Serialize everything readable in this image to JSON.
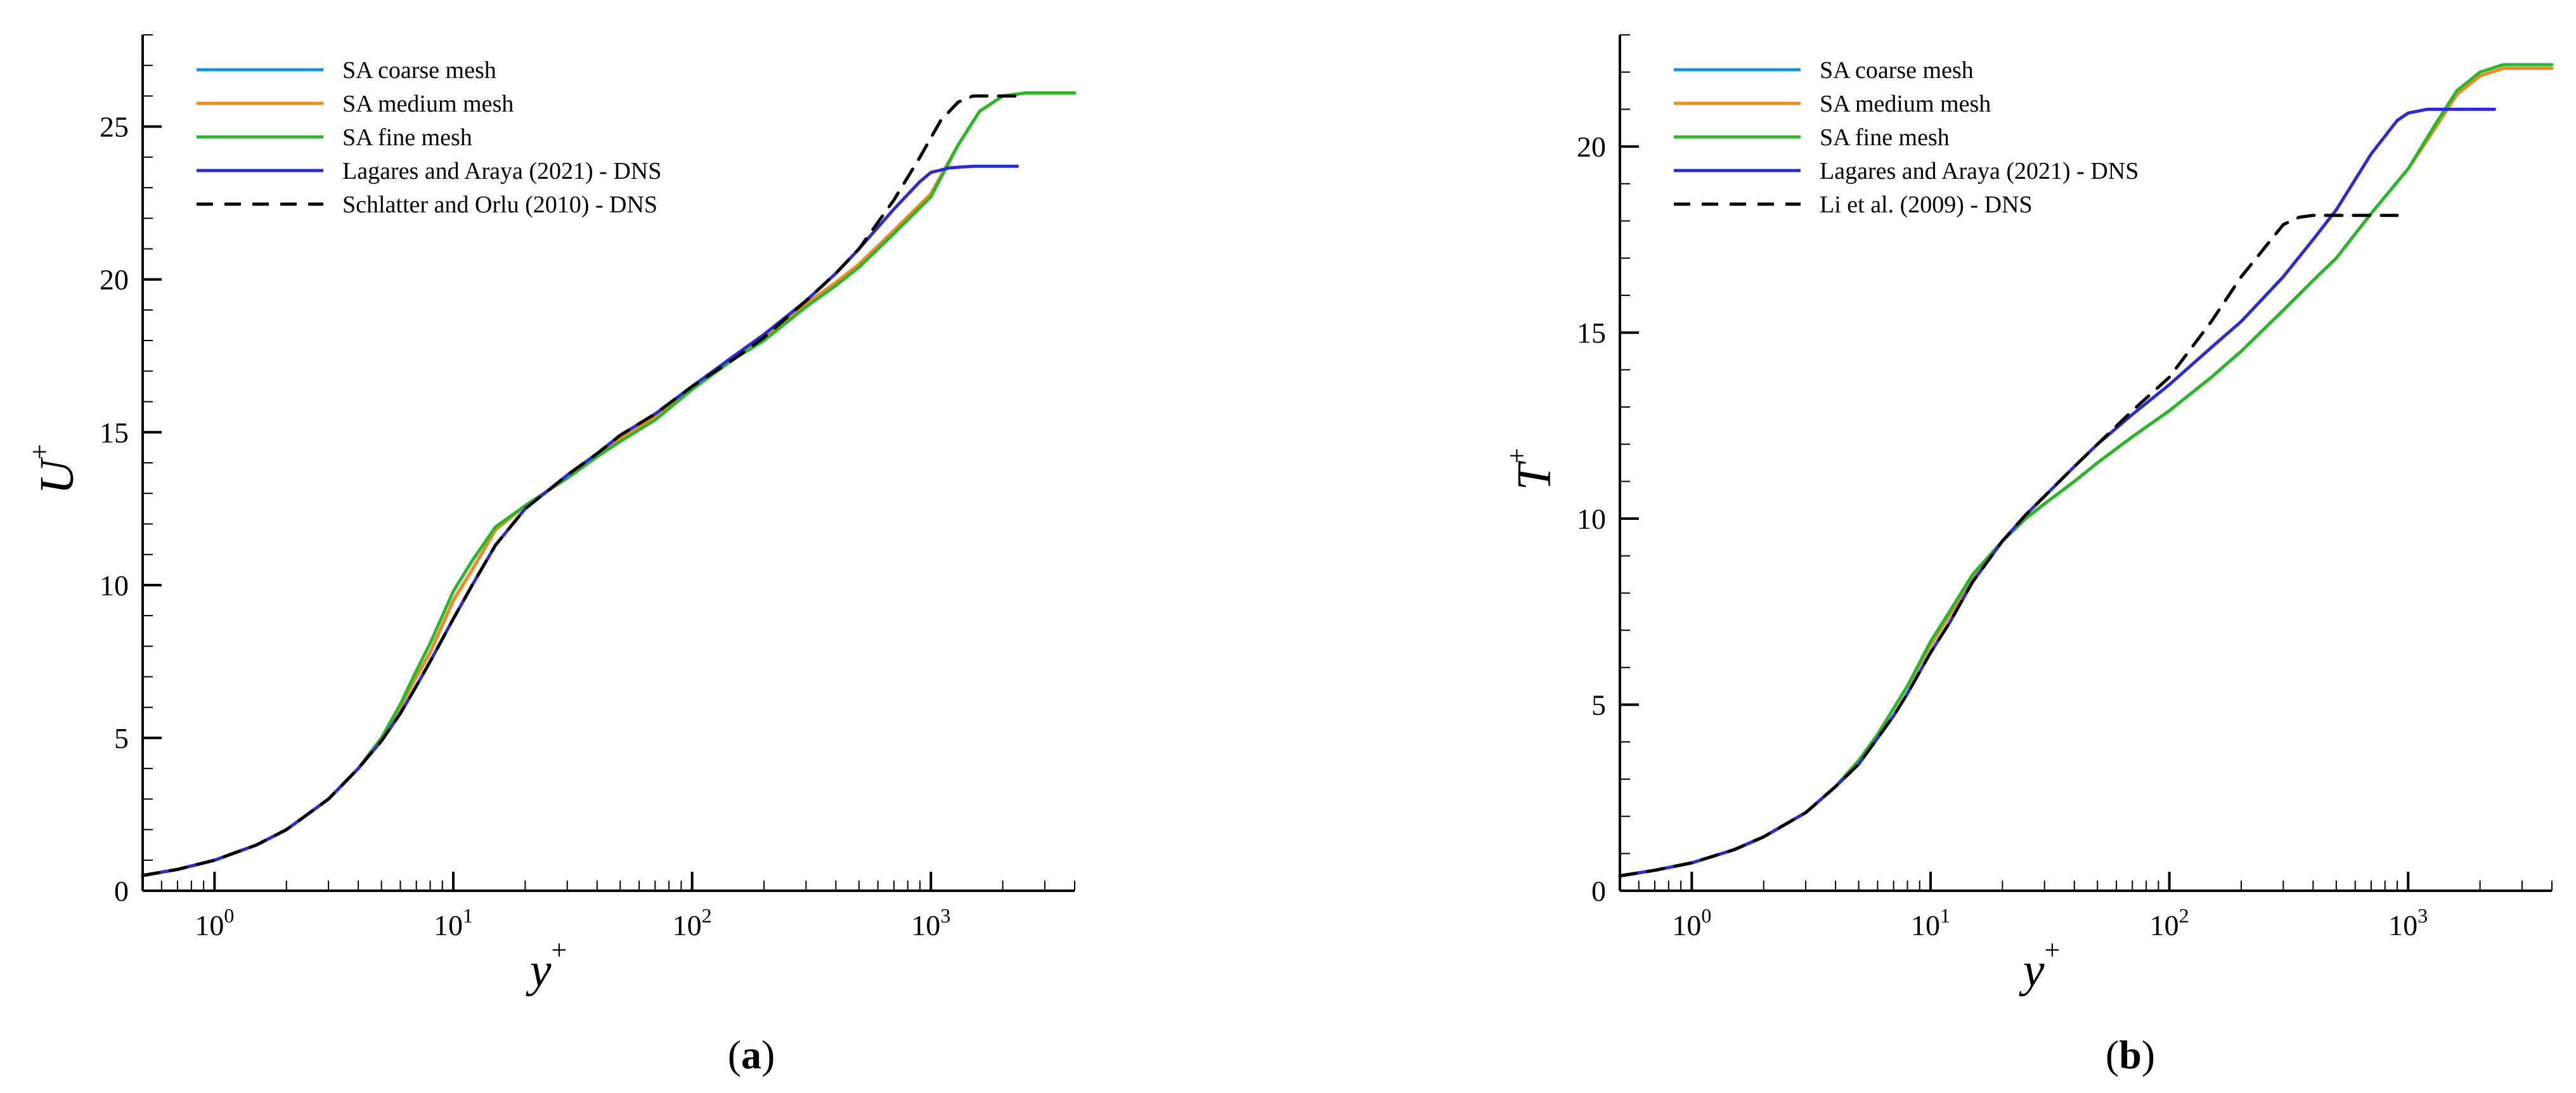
{
  "figure": {
    "panels": [
      "a",
      "b"
    ]
  },
  "chart_data": [
    {
      "type": "line",
      "panel_label": "(a)",
      "panel_letter": "a",
      "xlabel": "y",
      "xlabel_sup": "+",
      "ylabel": "U",
      "ylabel_sup": "+",
      "xscale": "log",
      "xlim": [
        0.5,
        4000
      ],
      "ylim": [
        0,
        28
      ],
      "yticks": [
        0,
        5,
        10,
        15,
        20,
        25
      ],
      "ytick_labels": [
        "0",
        "5",
        "10",
        "15",
        "20",
        "25"
      ],
      "xticks": [
        1,
        10,
        100,
        1000
      ],
      "xtick_base": "10",
      "xtick_exps": [
        "0",
        "1",
        "2",
        "3"
      ],
      "legend_position": "top-left",
      "grid": false,
      "series": [
        {
          "name": "SA coarse mesh",
          "color": "#1a8fd8",
          "dash": "solid",
          "x": [
            0.5,
            0.7,
            1,
            1.5,
            2,
            3,
            4,
            5,
            6,
            7,
            8,
            10,
            12,
            15,
            20,
            25,
            30,
            40,
            50,
            70,
            100,
            150,
            200,
            300,
            400,
            500,
            700,
            1000,
            1300,
            1600,
            2000,
            2500,
            3000,
            4000
          ],
          "y": [
            0.5,
            0.7,
            1.0,
            1.5,
            2.0,
            3.0,
            4.0,
            5.0,
            6.0,
            7.0,
            7.8,
            9.5,
            10.5,
            11.8,
            12.6,
            13.1,
            13.5,
            14.2,
            14.8,
            15.5,
            16.5,
            17.5,
            18.1,
            19.2,
            19.9,
            20.5,
            21.6,
            22.8,
            24.4,
            25.5,
            26.0,
            26.1,
            26.1,
            26.1
          ]
        },
        {
          "name": "SA medium mesh",
          "color": "#f28a1e",
          "dash": "solid",
          "x": [
            0.5,
            0.7,
            1,
            1.5,
            2,
            3,
            4,
            5,
            6,
            7,
            8,
            10,
            12,
            15,
            20,
            25,
            30,
            40,
            50,
            70,
            100,
            150,
            200,
            300,
            400,
            500,
            700,
            1000,
            1300,
            1600,
            2000,
            2500,
            3000,
            4000
          ],
          "y": [
            0.5,
            0.7,
            1.0,
            1.5,
            2.0,
            3.0,
            4.0,
            5.0,
            6.0,
            7.0,
            7.8,
            9.5,
            10.5,
            11.8,
            12.6,
            13.1,
            13.5,
            14.2,
            14.8,
            15.5,
            16.5,
            17.5,
            18.1,
            19.2,
            19.9,
            20.5,
            21.6,
            22.8,
            24.4,
            25.5,
            26.0,
            26.1,
            26.1,
            26.1
          ]
        },
        {
          "name": "SA fine mesh",
          "color": "#2ab82a",
          "dash": "solid",
          "x": [
            0.5,
            0.7,
            1,
            1.5,
            2,
            3,
            4,
            5,
            6,
            7,
            8,
            10,
            12,
            15,
            20,
            25,
            30,
            40,
            50,
            70,
            100,
            150,
            200,
            300,
            400,
            500,
            700,
            1000,
            1300,
            1600,
            2000,
            2500,
            3000,
            4000
          ],
          "y": [
            0.5,
            0.7,
            1.0,
            1.5,
            2.0,
            3.0,
            4.0,
            5.0,
            6.1,
            7.2,
            8.1,
            9.8,
            10.8,
            11.9,
            12.6,
            13.1,
            13.5,
            14.2,
            14.7,
            15.4,
            16.4,
            17.4,
            18.0,
            19.1,
            19.8,
            20.4,
            21.5,
            22.7,
            24.4,
            25.5,
            26.0,
            26.1,
            26.1,
            26.1
          ]
        },
        {
          "name": "Lagares and Araya (2021) - DNS",
          "color": "#2b2bd6",
          "dash": "solid",
          "x": [
            0.5,
            0.7,
            1,
            1.5,
            2,
            3,
            4,
            5,
            6,
            7,
            8,
            10,
            12,
            15,
            20,
            25,
            30,
            40,
            50,
            70,
            100,
            150,
            200,
            300,
            400,
            500,
            700,
            900,
            1000,
            1200,
            1500,
            2000,
            2300
          ],
          "y": [
            0.5,
            0.7,
            1.0,
            1.5,
            2.0,
            3.0,
            4.0,
            4.9,
            5.8,
            6.7,
            7.5,
            8.9,
            10.0,
            11.3,
            12.5,
            13.1,
            13.6,
            14.3,
            14.9,
            15.6,
            16.5,
            17.5,
            18.2,
            19.3,
            20.2,
            21.0,
            22.3,
            23.2,
            23.5,
            23.65,
            23.7,
            23.7,
            23.7
          ]
        },
        {
          "name": "Schlatter and Orlu (2010) - DNS",
          "color": "#000000",
          "dash": "dashed",
          "x": [
            0.5,
            0.7,
            1,
            1.5,
            2,
            3,
            4,
            5,
            6,
            7,
            8,
            10,
            12,
            15,
            20,
            25,
            30,
            40,
            50,
            70,
            100,
            150,
            200,
            300,
            400,
            500,
            700,
            900,
            1100,
            1300,
            1500,
            2000,
            2500
          ],
          "y": [
            0.5,
            0.7,
            1.0,
            1.5,
            2.0,
            3.0,
            4.0,
            4.9,
            5.8,
            6.7,
            7.5,
            8.9,
            10.0,
            11.3,
            12.5,
            13.1,
            13.6,
            14.3,
            14.9,
            15.6,
            16.5,
            17.4,
            18.1,
            19.3,
            20.2,
            21.0,
            22.6,
            24.0,
            25.2,
            25.8,
            26.0,
            26.0,
            26.0
          ]
        }
      ]
    },
    {
      "type": "line",
      "panel_label": "(b)",
      "panel_letter": "b",
      "xlabel": "y",
      "xlabel_sup": "+",
      "ylabel": "T",
      "ylabel_sup": "+",
      "xscale": "log",
      "xlim": [
        0.5,
        4000
      ],
      "ylim": [
        0,
        23
      ],
      "yticks": [
        0,
        5,
        10,
        15,
        20
      ],
      "ytick_labels": [
        "0",
        "5",
        "10",
        "15",
        "20"
      ],
      "xticks": [
        1,
        10,
        100,
        1000
      ],
      "xtick_base": "10",
      "xtick_exps": [
        "0",
        "1",
        "2",
        "3"
      ],
      "legend_position": "top-left",
      "grid": false,
      "series": [
        {
          "name": "SA coarse mesh",
          "color": "#1a8fd8",
          "dash": "solid",
          "x": [
            0.5,
            0.7,
            1,
            1.5,
            2,
            3,
            4,
            5,
            6,
            7,
            8,
            10,
            12,
            15,
            20,
            25,
            30,
            40,
            50,
            70,
            100,
            150,
            200,
            300,
            400,
            500,
            700,
            1000,
            1300,
            1600,
            2000,
            2500,
            3000,
            4000
          ],
          "y": [
            0.4,
            0.55,
            0.75,
            1.1,
            1.45,
            2.1,
            2.8,
            3.5,
            4.2,
            4.9,
            5.5,
            6.6,
            7.4,
            8.4,
            9.4,
            10.0,
            10.4,
            11.0,
            11.5,
            12.2,
            12.9,
            13.8,
            14.5,
            15.6,
            16.4,
            17.0,
            18.2,
            19.4,
            20.5,
            21.4,
            21.9,
            22.1,
            22.1,
            22.1
          ]
        },
        {
          "name": "SA medium mesh",
          "color": "#f28a1e",
          "dash": "solid",
          "x": [
            0.5,
            0.7,
            1,
            1.5,
            2,
            3,
            4,
            5,
            6,
            7,
            8,
            10,
            12,
            15,
            20,
            25,
            30,
            40,
            50,
            70,
            100,
            150,
            200,
            300,
            400,
            500,
            700,
            1000,
            1300,
            1600,
            2000,
            2500,
            3000,
            4000
          ],
          "y": [
            0.4,
            0.55,
            0.75,
            1.1,
            1.45,
            2.1,
            2.8,
            3.5,
            4.2,
            4.9,
            5.5,
            6.6,
            7.4,
            8.4,
            9.4,
            10.0,
            10.4,
            11.0,
            11.5,
            12.2,
            12.9,
            13.8,
            14.5,
            15.6,
            16.4,
            17.0,
            18.2,
            19.4,
            20.5,
            21.4,
            21.9,
            22.1,
            22.1,
            22.1
          ]
        },
        {
          "name": "SA fine mesh",
          "color": "#2ab82a",
          "dash": "solid",
          "x": [
            0.5,
            0.7,
            1,
            1.5,
            2,
            3,
            4,
            5,
            6,
            7,
            8,
            10,
            12,
            15,
            20,
            25,
            30,
            40,
            50,
            70,
            100,
            150,
            200,
            300,
            400,
            500,
            700,
            1000,
            1300,
            1600,
            2000,
            2500,
            3000,
            4000
          ],
          "y": [
            0.4,
            0.55,
            0.75,
            1.1,
            1.45,
            2.1,
            2.8,
            3.5,
            4.2,
            4.9,
            5.5,
            6.7,
            7.5,
            8.5,
            9.4,
            10.0,
            10.4,
            11.0,
            11.5,
            12.2,
            12.9,
            13.8,
            14.5,
            15.6,
            16.4,
            17.0,
            18.2,
            19.4,
            20.6,
            21.5,
            22.0,
            22.2,
            22.2,
            22.2
          ]
        },
        {
          "name": "Lagares and Araya (2021) - DNS",
          "color": "#2b2bd6",
          "dash": "solid",
          "x": [
            0.5,
            0.7,
            1,
            1.5,
            2,
            3,
            4,
            5,
            6,
            7,
            8,
            10,
            12,
            15,
            20,
            25,
            30,
            40,
            50,
            70,
            100,
            150,
            200,
            300,
            400,
            500,
            700,
            900,
            1000,
            1200,
            1500,
            2000,
            2300
          ],
          "y": [
            0.4,
            0.55,
            0.75,
            1.1,
            1.45,
            2.1,
            2.8,
            3.4,
            4.1,
            4.7,
            5.3,
            6.4,
            7.2,
            8.3,
            9.4,
            10.1,
            10.6,
            11.4,
            12.0,
            12.8,
            13.6,
            14.6,
            15.3,
            16.5,
            17.5,
            18.3,
            19.8,
            20.7,
            20.9,
            21.0,
            21.0,
            21.0,
            21.0
          ]
        },
        {
          "name": "Li et al. (2009) - DNS",
          "color": "#000000",
          "dash": "dashed",
          "x": [
            0.5,
            0.7,
            1,
            1.5,
            2,
            3,
            4,
            5,
            6,
            7,
            8,
            10,
            12,
            15,
            20,
            25,
            30,
            40,
            50,
            70,
            100,
            150,
            200,
            300,
            350,
            400,
            500,
            600,
            700,
            800,
            900
          ],
          "y": [
            0.4,
            0.55,
            0.75,
            1.1,
            1.45,
            2.1,
            2.8,
            3.4,
            4.1,
            4.7,
            5.3,
            6.4,
            7.2,
            8.3,
            9.4,
            10.1,
            10.6,
            11.4,
            12.0,
            12.9,
            13.8,
            15.3,
            16.5,
            17.9,
            18.1,
            18.15,
            18.15,
            18.15,
            18.15,
            18.15,
            18.15
          ]
        }
      ]
    }
  ]
}
